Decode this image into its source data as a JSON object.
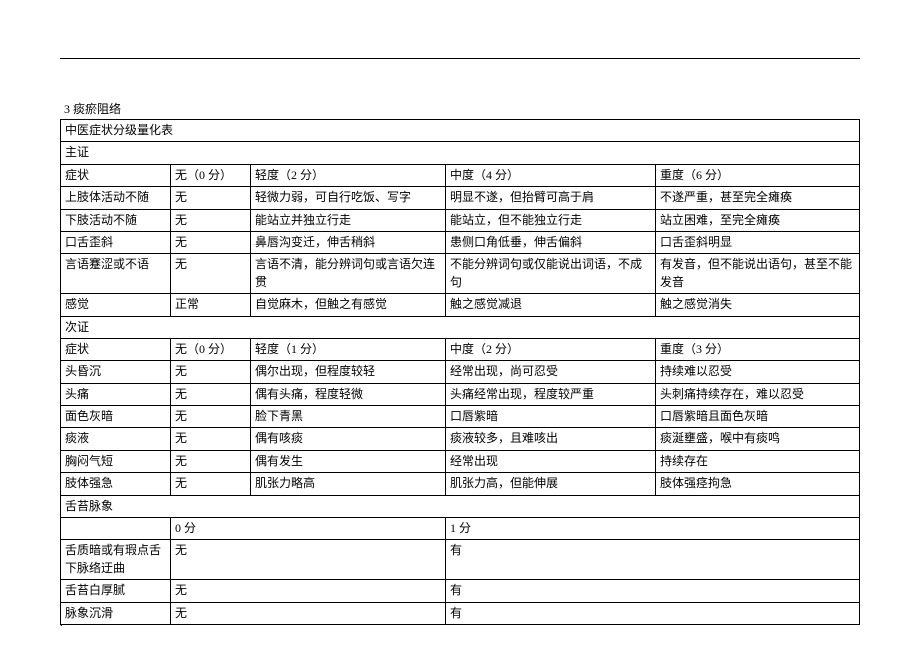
{
  "section_number": "3 痰瘀阻络",
  "table_title": "中医症状分级量化表",
  "main_section": "主证",
  "main_header": {
    "symptom": "症状",
    "none": "无（0 分）",
    "mild": "轻度（2 分）",
    "moderate": "中度（4 分）",
    "severe": "重度（6 分）"
  },
  "main_rows": [
    {
      "symptom": "上肢体活动不随",
      "none": "无",
      "mild": "轻微力弱，可自行吃饭、写字",
      "moderate": "明显不遂，但抬臂可高于肩",
      "severe": "不遂严重，甚至完全瘫痪"
    },
    {
      "symptom": "下肢活动不随",
      "none": "无",
      "mild": "能站立并独立行走",
      "moderate": "能站立，但不能独立行走",
      "severe": "站立困难，至完全瘫痪"
    },
    {
      "symptom": "口舌歪斜",
      "none": "无",
      "mild": "鼻唇沟变迁，伸舌稍斜",
      "moderate": "患侧口角低垂，伸舌偏斜",
      "severe": "口舌歪斜明显"
    },
    {
      "symptom": "言语蹇涩或不语",
      "none": "无",
      "mild": "言语不清，能分辨词句或言语欠连贯",
      "moderate": "不能分辨词句或仅能说出词语，不成句",
      "severe": "有发音，但不能说出语句，甚至不能发音"
    },
    {
      "symptom": "感觉",
      "none": "正常",
      "mild": "自觉麻木，但触之有感觉",
      "moderate": "触之感觉减退",
      "severe": "触之感觉消失"
    }
  ],
  "sub_section": "次证",
  "sub_header": {
    "symptom": "症状",
    "none": "无（0 分）",
    "mild": "轻度（1 分）",
    "moderate": "中度（2 分）",
    "severe": "重度（3 分）"
  },
  "sub_rows": [
    {
      "symptom": "头昏沉",
      "none": "无",
      "mild": "偶尔出现，但程度较轻",
      "moderate": "经常出现，尚可忍受",
      "severe": "持续难以忍受"
    },
    {
      "symptom": "头痛",
      "none": "无",
      "mild": "偶有头痛，程度轻微",
      "moderate": "头痛经常出现，程度较严重",
      "severe": "头刺痛持续存在，难以忍受"
    },
    {
      "symptom": "面色灰暗",
      "none": "无",
      "mild": "脸下青黑",
      "moderate": "口唇紫暗",
      "severe": "口唇紫暗且面色灰暗"
    },
    {
      "symptom": "痰液",
      "none": "无",
      "mild": "偶有咳痰",
      "moderate": "痰液较多，且难咳出",
      "severe": "痰涎壅盛，喉中有痰鸣"
    },
    {
      "symptom": "胸闷气短",
      "none": "无",
      "mild": "偶有发生",
      "moderate": "经常出现",
      "severe": "持续存在"
    },
    {
      "symptom": "肢体强急",
      "none": "无",
      "mild": "肌张力略高",
      "moderate": "肌张力高，但能伸展",
      "severe": "肢体强痉拘急"
    }
  ],
  "tongue_section": "舌苔脉象",
  "tongue_header": {
    "zero": "0 分",
    "one": "1 分"
  },
  "tongue_rows": [
    {
      "label": "舌质暗或有瑕点舌下脉络迂曲",
      "zero": "无",
      "one": "有"
    },
    {
      "label": "舌苔白厚腻",
      "zero": "无",
      "one": "有"
    },
    {
      "label": "脉象沉滑",
      "zero": "无",
      "one": "有"
    }
  ]
}
